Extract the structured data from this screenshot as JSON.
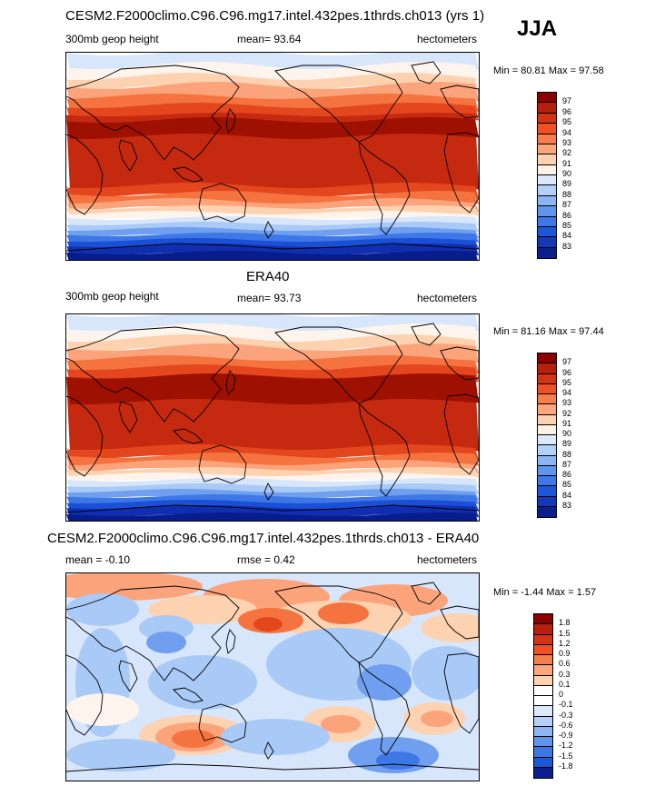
{
  "season": "JJA",
  "panels": [
    {
      "title": "CESM2.F2000climo.C96.C96.mg17.intel.432pes.1thrds.ch013 (yrs 1)",
      "left_label": "300mb geop height",
      "mid_label": "mean=  93.64",
      "right_label": "hectometers",
      "minmax": "Min =  80.81 Max =  97.58",
      "colorbar": {
        "colors": [
          "#8b0000",
          "#b5200c",
          "#d33416",
          "#ef5125",
          "#f67e4c",
          "#fca67c",
          "#fdd2b0",
          "#fdf0e4",
          "#dce9fb",
          "#b3d0f7",
          "#8bb6f3",
          "#5f95ec",
          "#3d78e6",
          "#1d57d8",
          "#1538b9",
          "#0a1f8c"
        ],
        "labels": [
          "97",
          "96",
          "95",
          "94",
          "93",
          "92",
          "91",
          "90",
          "89",
          "88",
          "87",
          "86",
          "85",
          "84",
          "83"
        ]
      }
    },
    {
      "title": "ERA40",
      "left_label": "300mb geop height",
      "mid_label": "mean=  93.73",
      "right_label": "hectometers",
      "minmax": "Min =  81.16 Max =  97.44",
      "colorbar": {
        "colors": [
          "#8b0000",
          "#b5200c",
          "#d33416",
          "#ef5125",
          "#f67e4c",
          "#fca67c",
          "#fdd2b0",
          "#fdf0e4",
          "#dce9fb",
          "#b3d0f7",
          "#8bb6f3",
          "#5f95ec",
          "#3d78e6",
          "#1d57d8",
          "#1538b9",
          "#0a1f8c"
        ],
        "labels": [
          "97",
          "96",
          "95",
          "94",
          "93",
          "92",
          "91",
          "90",
          "89",
          "88",
          "87",
          "86",
          "85",
          "84",
          "83"
        ]
      }
    },
    {
      "title": "CESM2.F2000climo.C96.C96.mg17.intel.432pes.1thrds.ch013 - ERA40",
      "left_label": "mean =  -0.10",
      "mid_label": "rmse =   0.42",
      "right_label": "hectometers",
      "minmax": "Min =  -1.44 Max =   1.57",
      "colorbar": {
        "colors": [
          "#8b0000",
          "#b5200c",
          "#d33416",
          "#ef5125",
          "#f67e4c",
          "#fca67c",
          "#fdd2b0",
          "#ffffff",
          "#ffffff",
          "#dce9fb",
          "#b3d0f7",
          "#8bb6f3",
          "#5f95ec",
          "#3d78e6",
          "#1d57d8",
          "#0a1f8c"
        ],
        "labels": [
          "1.8",
          "1.5",
          "1.2",
          "0.9",
          "0.6",
          "0.3",
          "0.1",
          "0",
          "-0.1",
          "-0.3",
          "-0.6",
          "-0.9",
          "-1.2",
          "-1.5",
          "-1.8"
        ]
      }
    }
  ],
  "map_colors": {
    "deep_red": "#9e1000",
    "red": "#c52a10",
    "orange_red": "#e4471d",
    "orange": "#f4733f",
    "salmon": "#fba47c",
    "peach": "#fdd2b0",
    "white": "#fdf4ee",
    "pale_blue": "#d8e6fb",
    "light_blue": "#a9c9f6",
    "mid_blue": "#6f9fee",
    "blue": "#3d78e6",
    "royal_blue": "#1a4fd6",
    "dark_blue": "#0f2fb0",
    "navy": "#081c8c",
    "coast": "#000000"
  }
}
